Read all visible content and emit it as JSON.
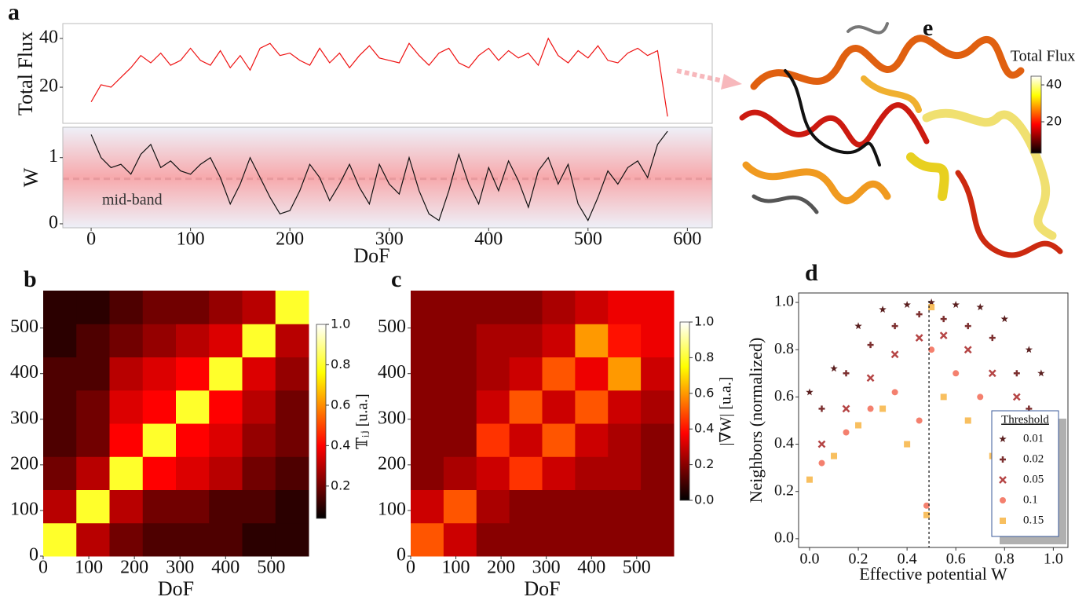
{
  "chart_data": [
    {
      "type": "line",
      "panel": "a",
      "ylabel": "Total Flux",
      "color": "#ee1111",
      "xlim": [
        -28.5,
        625
      ],
      "ylim": [
        5.2,
        46.1
      ],
      "yticks": [
        20,
        40
      ],
      "x": [
        0,
        10,
        20,
        30,
        40,
        50,
        60,
        70,
        80,
        90,
        100,
        110,
        120,
        130,
        140,
        150,
        160,
        170,
        180,
        190,
        200,
        210,
        220,
        230,
        240,
        250,
        260,
        270,
        280,
        290,
        300,
        310,
        320,
        330,
        340,
        350,
        360,
        370,
        380,
        390,
        400,
        410,
        420,
        430,
        440,
        450,
        460,
        470,
        480,
        490,
        500,
        510,
        520,
        530,
        540,
        550,
        560,
        570,
        580
      ],
      "values": [
        14,
        21,
        20,
        24,
        28,
        33,
        30,
        34,
        29,
        31,
        36,
        31,
        29,
        35,
        28,
        33,
        27,
        36,
        38,
        33,
        34,
        31,
        29,
        36,
        30,
        34,
        28,
        33,
        37,
        32,
        31,
        30,
        38,
        33,
        29,
        34,
        36,
        30,
        28,
        33,
        36,
        31,
        35,
        32,
        34,
        29,
        40,
        33,
        30,
        35,
        32,
        37,
        31,
        30,
        34,
        36,
        33,
        35,
        8
      ]
    },
    {
      "type": "line",
      "ylabel": "W",
      "xlabel": "DoF",
      "color": "#111111",
      "xlim": [
        -28.5,
        625
      ],
      "ylim": [
        -0.06,
        1.46
      ],
      "xticks": [
        0,
        100,
        200,
        300,
        400,
        500,
        600
      ],
      "yticks": [
        0,
        1
      ],
      "band_center": 0.68,
      "annotation": "mid-band",
      "x": [
        0,
        10,
        20,
        30,
        40,
        50,
        60,
        70,
        80,
        90,
        100,
        110,
        120,
        130,
        140,
        150,
        160,
        170,
        180,
        190,
        200,
        210,
        220,
        230,
        240,
        250,
        260,
        270,
        280,
        290,
        300,
        310,
        320,
        330,
        340,
        350,
        360,
        370,
        380,
        390,
        400,
        410,
        420,
        430,
        440,
        450,
        460,
        470,
        480,
        490,
        500,
        510,
        520,
        530,
        540,
        550,
        560,
        570,
        580
      ],
      "values": [
        1.35,
        1.0,
        0.85,
        0.9,
        0.75,
        1.05,
        1.2,
        0.85,
        0.95,
        0.8,
        0.75,
        0.9,
        1.0,
        0.7,
        0.3,
        0.6,
        1.0,
        0.7,
        0.4,
        0.15,
        0.2,
        0.5,
        0.9,
        0.7,
        0.35,
        0.6,
        0.9,
        0.55,
        0.3,
        0.9,
        0.6,
        0.45,
        1.0,
        0.5,
        0.15,
        0.05,
        0.5,
        1.05,
        0.6,
        0.3,
        0.85,
        0.5,
        0.95,
        0.65,
        0.25,
        0.8,
        1.0,
        0.6,
        0.9,
        0.3,
        0.05,
        0.4,
        0.8,
        0.6,
        0.85,
        0.95,
        0.7,
        1.2,
        1.4
      ]
    },
    {
      "type": "heatmap",
      "panel": "b",
      "xlabel": "DoF",
      "xlim": [
        0,
        582
      ],
      "ylim": [
        0,
        582
      ],
      "xticks": [
        0,
        100,
        200,
        300,
        400,
        500
      ],
      "yticks": [
        0,
        100,
        200,
        300,
        400,
        500
      ],
      "colorbar_label": "𝕋ᵢⱼ [u.a.]",
      "clim": [
        0.04,
        1.0
      ],
      "cticks": [
        0.2,
        0.4,
        0.6,
        0.8,
        {
          "value": 1,
          "label": "1.0"
        }
      ],
      "matrix": [
        [
          0.8,
          0.3,
          0.2,
          0.15,
          0.15,
          0.15,
          0.1,
          0.1
        ],
        [
          0.3,
          0.8,
          0.3,
          0.2,
          0.2,
          0.15,
          0.15,
          0.1
        ],
        [
          0.2,
          0.3,
          0.8,
          0.4,
          0.35,
          0.3,
          0.2,
          0.15
        ],
        [
          0.15,
          0.2,
          0.4,
          0.8,
          0.4,
          0.35,
          0.25,
          0.2
        ],
        [
          0.15,
          0.2,
          0.35,
          0.4,
          0.8,
          0.4,
          0.3,
          0.2
        ],
        [
          0.15,
          0.15,
          0.3,
          0.35,
          0.4,
          0.8,
          0.35,
          0.25
        ],
        [
          0.1,
          0.15,
          0.2,
          0.25,
          0.3,
          0.35,
          0.8,
          0.3
        ],
        [
          0.1,
          0.1,
          0.15,
          0.2,
          0.2,
          0.25,
          0.3,
          0.8
        ]
      ]
    },
    {
      "type": "heatmap",
      "panel": "c",
      "xlabel": "DoF",
      "xlim": [
        0,
        582
      ],
      "ylim": [
        0,
        582
      ],
      "xticks": [
        0,
        100,
        200,
        300,
        400,
        500
      ],
      "yticks": [
        0,
        100,
        200,
        300,
        400,
        500
      ],
      "colorbar_label": "|∇W| [u.a.]",
      "clim": [
        0,
        1.0
      ],
      "cticks": [
        {
          "value": 0,
          "label": "0.0"
        },
        0.2,
        0.4,
        0.6,
        0.8,
        {
          "value": 1,
          "label": "1.0"
        }
      ],
      "matrix": [
        [
          0.5,
          0.3,
          0.2,
          0.2,
          0.2,
          0.2,
          0.2,
          0.2
        ],
        [
          0.3,
          0.5,
          0.25,
          0.2,
          0.2,
          0.2,
          0.2,
          0.2
        ],
        [
          0.2,
          0.25,
          0.3,
          0.45,
          0.3,
          0.25,
          0.25,
          0.2
        ],
        [
          0.2,
          0.2,
          0.45,
          0.3,
          0.5,
          0.3,
          0.25,
          0.2
        ],
        [
          0.2,
          0.2,
          0.3,
          0.5,
          0.3,
          0.5,
          0.3,
          0.25
        ],
        [
          0.2,
          0.2,
          0.25,
          0.3,
          0.5,
          0.35,
          0.6,
          0.3
        ],
        [
          0.2,
          0.2,
          0.25,
          0.25,
          0.3,
          0.6,
          0.4,
          0.35
        ],
        [
          0.2,
          0.2,
          0.2,
          0.2,
          0.25,
          0.3,
          0.35,
          0.35
        ]
      ]
    },
    {
      "type": "scatter",
      "panel": "d",
      "xlabel": "Effective potential W",
      "ylabel": "Neighbors (normalized)",
      "xlim": [
        -0.045,
        1.06
      ],
      "ylim": [
        -0.037,
        1.04
      ],
      "xticks": [
        {
          "value": 0,
          "label": "0.0"
        },
        0.2,
        0.4,
        0.6,
        0.8,
        {
          "value": 1,
          "label": "1.0"
        }
      ],
      "yticks": [
        {
          "value": 0,
          "label": "0.0"
        },
        0.2,
        0.4,
        0.6,
        0.8,
        {
          "value": 1,
          "label": "1.0"
        }
      ],
      "vline": 0.49,
      "legend_title": "Threshold",
      "legend_loc": "lower right",
      "series": [
        {
          "name": "0.01",
          "color": "#5a1f1f",
          "marker": "star",
          "x": [
            0.0,
            0.1,
            0.2,
            0.3,
            0.4,
            0.5,
            0.6,
            0.7,
            0.8,
            0.9,
            0.95
          ],
          "y": [
            0.62,
            0.72,
            0.9,
            0.97,
            0.99,
            1.0,
            0.99,
            0.98,
            0.93,
            0.8,
            0.7
          ]
        },
        {
          "name": "0.02",
          "color": "#7d3030",
          "marker": "plus",
          "x": [
            0.05,
            0.15,
            0.25,
            0.35,
            0.45,
            0.55,
            0.65,
            0.75,
            0.85,
            0.9
          ],
          "y": [
            0.55,
            0.7,
            0.82,
            0.9,
            0.95,
            0.93,
            0.9,
            0.85,
            0.7,
            0.55
          ]
        },
        {
          "name": "0.05",
          "color": "#b54545",
          "marker": "x",
          "x": [
            0.05,
            0.15,
            0.25,
            0.35,
            0.45,
            0.55,
            0.65,
            0.75,
            0.85
          ],
          "y": [
            0.4,
            0.55,
            0.68,
            0.78,
            0.85,
            0.86,
            0.8,
            0.7,
            0.6
          ]
        },
        {
          "name": "0.1",
          "color": "#f26a55",
          "marker": "circle",
          "x": [
            0.05,
            0.15,
            0.25,
            0.35,
            0.45,
            0.5,
            0.6,
            0.7,
            0.8,
            0.48
          ],
          "y": [
            0.32,
            0.45,
            0.55,
            0.62,
            0.5,
            0.8,
            0.7,
            0.6,
            0.5,
            0.14
          ]
        },
        {
          "name": "0.15",
          "color": "#f7b443",
          "marker": "square",
          "x": [
            0.0,
            0.1,
            0.2,
            0.3,
            0.4,
            0.48,
            0.55,
            0.65,
            0.75,
            0.5
          ],
          "y": [
            0.25,
            0.35,
            0.48,
            0.55,
            0.4,
            0.1,
            0.6,
            0.5,
            0.35,
            0.98
          ]
        }
      ]
    },
    {
      "type": "colorbar",
      "panel": "e",
      "title": "Total Flux",
      "clim": [
        3,
        44.7
      ],
      "cticks": [
        20,
        40
      ]
    }
  ]
}
